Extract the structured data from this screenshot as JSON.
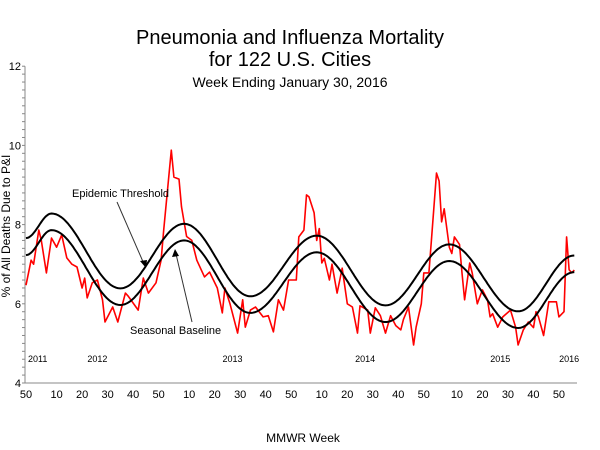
{
  "chart_data": {
    "type": "line",
    "title": "Pneumonia and Influenza Mortality",
    "title_line2": "for 122 U.S. Cities",
    "subtitle": "Week Ending  January 30, 2016",
    "xlabel": "MMWR Week",
    "ylabel": "% of All Deaths Due to P&I",
    "ylim": [
      4,
      12
    ],
    "yticks": [
      "4",
      "6",
      "8",
      "10",
      "12"
    ],
    "xticks": [
      {
        "at": "2011-W50",
        "label": "50"
      },
      {
        "at": "2012-W10",
        "label": "10"
      },
      {
        "at": "2012-W20",
        "label": "20"
      },
      {
        "at": "2012-W30",
        "label": "30"
      },
      {
        "at": "2012-W40",
        "label": "40"
      },
      {
        "at": "2012-W50",
        "label": "50"
      },
      {
        "at": "2013-W10",
        "label": "10"
      },
      {
        "at": "2013-W20",
        "label": "20"
      },
      {
        "at": "2013-W30",
        "label": "30"
      },
      {
        "at": "2013-W40",
        "label": "40"
      },
      {
        "at": "2013-W50",
        "label": "50"
      },
      {
        "at": "2014-W10",
        "label": "10"
      },
      {
        "at": "2014-W20",
        "label": "20"
      },
      {
        "at": "2014-W30",
        "label": "30"
      },
      {
        "at": "2014-W40",
        "label": "40"
      },
      {
        "at": "2014-W50",
        "label": "50"
      },
      {
        "at": "2015-W10",
        "label": "10"
      },
      {
        "at": "2015-W20",
        "label": "20"
      },
      {
        "at": "2015-W30",
        "label": "30"
      },
      {
        "at": "2015-W40",
        "label": "40"
      },
      {
        "at": "2015-W50",
        "label": "50"
      }
    ],
    "year_labels": [
      "2011",
      "2012",
      "2013",
      "2014",
      "2015",
      "2016"
    ],
    "grid": false,
    "colors": {
      "observed": "#ff0000",
      "threshold": "#000000",
      "baseline": "#000000"
    },
    "annotations": {
      "threshold": "Epidemic Threshold",
      "baseline": "Seasonal Baseline"
    },
    "series": [
      {
        "id": "observed",
        "points": [
          [
            "2011-W50",
            6.47
          ],
          [
            "2011-W52",
            7.1
          ],
          [
            "2012-W01",
            7.0
          ],
          [
            "2012-W03",
            7.86
          ],
          [
            "2012-W04",
            7.6
          ],
          [
            "2012-W06",
            6.78
          ],
          [
            "2012-W08",
            7.66
          ],
          [
            "2012-W10",
            7.43
          ],
          [
            "2012-W12",
            7.74
          ],
          [
            "2012-W14",
            7.16
          ],
          [
            "2012-W16",
            7.0
          ],
          [
            "2012-W18",
            6.93
          ],
          [
            "2012-W20",
            6.4
          ],
          [
            "2012-W21",
            6.65
          ],
          [
            "2012-W22",
            6.15
          ],
          [
            "2012-W24",
            6.53
          ],
          [
            "2012-W26",
            6.6
          ],
          [
            "2012-W28",
            6.1
          ],
          [
            "2012-W29",
            5.54
          ],
          [
            "2012-W32",
            5.92
          ],
          [
            "2012-W34",
            5.54
          ],
          [
            "2012-W37",
            6.27
          ],
          [
            "2012-W38",
            6.2
          ],
          [
            "2012-W42",
            5.84
          ],
          [
            "2012-W44",
            6.65
          ],
          [
            "2012-W46",
            6.27
          ],
          [
            "2012-W49",
            6.53
          ],
          [
            "2012-W51",
            7.1
          ],
          [
            "2012-W52",
            7.86
          ],
          [
            "2013-W03",
            9.88
          ],
          [
            "2013-W04",
            9.2
          ],
          [
            "2013-W06",
            9.15
          ],
          [
            "2013-W07",
            8.45
          ],
          [
            "2013-W09",
            7.7
          ],
          [
            "2013-W11",
            7.6
          ],
          [
            "2013-W13",
            7.1
          ],
          [
            "2013-W16",
            6.68
          ],
          [
            "2013-W18",
            6.8
          ],
          [
            "2013-W21",
            6.4
          ],
          [
            "2013-W23",
            5.77
          ],
          [
            "2013-W24",
            6.4
          ],
          [
            "2013-W26",
            6.0
          ],
          [
            "2013-W29",
            5.26
          ],
          [
            "2013-W31",
            6.1
          ],
          [
            "2013-W32",
            5.41
          ],
          [
            "2013-W34",
            5.84
          ],
          [
            "2013-W36",
            5.92
          ],
          [
            "2013-W39",
            5.67
          ],
          [
            "2013-W41",
            5.7
          ],
          [
            "2013-W43",
            5.29
          ],
          [
            "2013-W45",
            6.1
          ],
          [
            "2013-W47",
            5.84
          ],
          [
            "2013-W49",
            6.6
          ],
          [
            "2013-W52",
            6.6
          ],
          [
            "2014-W01",
            7.69
          ],
          [
            "2014-W03",
            7.86
          ],
          [
            "2014-W04",
            8.75
          ],
          [
            "2014-W05",
            8.7
          ],
          [
            "2014-W07",
            8.3
          ],
          [
            "2014-W08",
            7.6
          ],
          [
            "2014-W09",
            7.9
          ],
          [
            "2014-W10",
            7.03
          ],
          [
            "2014-W11",
            7.15
          ],
          [
            "2014-W13",
            6.6
          ],
          [
            "2014-W14",
            7.0
          ],
          [
            "2014-W16",
            6.27
          ],
          [
            "2014-W18",
            6.9
          ],
          [
            "2014-W20",
            6.0
          ],
          [
            "2014-W22",
            5.92
          ],
          [
            "2014-W24",
            5.26
          ],
          [
            "2014-W25",
            5.95
          ],
          [
            "2014-W28",
            5.84
          ],
          [
            "2014-W29",
            5.26
          ],
          [
            "2014-W31",
            5.9
          ],
          [
            "2014-W33",
            5.7
          ],
          [
            "2014-W35",
            5.26
          ],
          [
            "2014-W37",
            5.7
          ],
          [
            "2014-W39",
            5.45
          ],
          [
            "2014-W41",
            5.34
          ],
          [
            "2014-W42",
            5.6
          ],
          [
            "2014-W44",
            5.92
          ],
          [
            "2014-W46",
            4.96
          ],
          [
            "2014-W47",
            5.41
          ],
          [
            "2014-W49",
            6.0
          ],
          [
            "2014-W50",
            6.78
          ],
          [
            "2014-W52",
            6.78
          ],
          [
            "2014-W53",
            7.6
          ],
          [
            "2015-W02",
            9.3
          ],
          [
            "2015-W03",
            9.1
          ],
          [
            "2015-W04",
            8.07
          ],
          [
            "2015-W05",
            8.4
          ],
          [
            "2015-W07",
            7.43
          ],
          [
            "2015-W08",
            7.27
          ],
          [
            "2015-W09",
            7.69
          ],
          [
            "2015-W11",
            7.5
          ],
          [
            "2015-W12",
            6.78
          ],
          [
            "2015-W13",
            6.1
          ],
          [
            "2015-W15",
            7.03
          ],
          [
            "2015-W16",
            6.78
          ],
          [
            "2015-W18",
            6.0
          ],
          [
            "2015-W20",
            6.35
          ],
          [
            "2015-W22",
            6.1
          ],
          [
            "2015-W23",
            5.67
          ],
          [
            "2015-W24",
            5.75
          ],
          [
            "2015-W26",
            5.41
          ],
          [
            "2015-W28",
            5.67
          ],
          [
            "2015-W31",
            5.84
          ],
          [
            "2015-W33",
            5.41
          ],
          [
            "2015-W34",
            4.96
          ],
          [
            "2015-W36",
            5.34
          ],
          [
            "2015-W38",
            5.54
          ],
          [
            "2015-W40",
            5.4
          ],
          [
            "2015-W41",
            5.8
          ],
          [
            "2015-W42",
            5.67
          ],
          [
            "2015-W44",
            5.2
          ],
          [
            "2015-W46",
            6.05
          ],
          [
            "2015-W49",
            6.05
          ],
          [
            "2015-W50",
            5.67
          ],
          [
            "2015-W52",
            5.8
          ],
          [
            "2016-W01",
            7.69
          ],
          [
            "2016-W02",
            6.86
          ],
          [
            "2016-W03",
            6.78
          ],
          [
            "2016-W04",
            6.85
          ]
        ]
      },
      {
        "id": "threshold",
        "name": "Epidemic Threshold",
        "points": [
          [
            "2011-W50",
            7.66
          ],
          [
            "2012-W08",
            8.28
          ],
          [
            "2012-W35",
            6.39
          ],
          [
            "2013-W08",
            8.02
          ],
          [
            "2013-W34",
            6.19
          ],
          [
            "2014-W08",
            7.72
          ],
          [
            "2014-W35",
            5.96
          ],
          [
            "2015-W07",
            7.5
          ],
          [
            "2015-W34",
            5.81
          ],
          [
            "2016-W04",
            7.22
          ]
        ]
      },
      {
        "id": "baseline",
        "name": "Seasonal Baseline",
        "points": [
          [
            "2011-W50",
            7.23
          ],
          [
            "2012-W08",
            7.86
          ],
          [
            "2012-W35",
            5.97
          ],
          [
            "2013-W08",
            7.6
          ],
          [
            "2013-W34",
            5.77
          ],
          [
            "2014-W08",
            7.3
          ],
          [
            "2014-W35",
            5.54
          ],
          [
            "2015-W07",
            7.08
          ],
          [
            "2015-W34",
            5.39
          ],
          [
            "2016-W04",
            6.8
          ]
        ]
      }
    ]
  }
}
